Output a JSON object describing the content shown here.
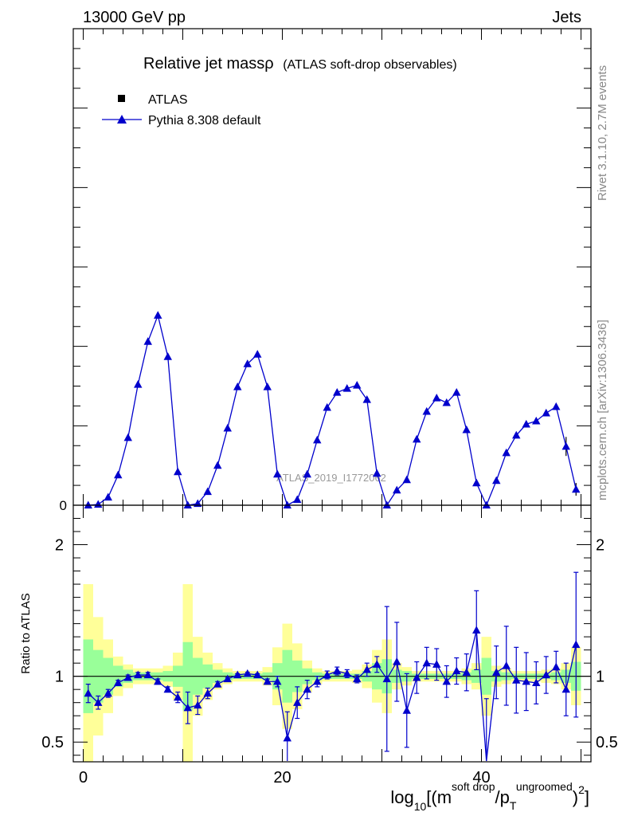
{
  "header": {
    "energy_label": "13000 GeV pp",
    "process_label": "Jets"
  },
  "side_labels": {
    "rivet": "Rivet 3.1.10,  2.7M events",
    "mcplots": "mcplots.cern.ch [arXiv:1306.3436]"
  },
  "watermark": "ATLAS_2019_I1772062",
  "colors": {
    "mc": "#0000cc",
    "band_inner": "#99ff99",
    "band_outer": "#ffff99",
    "axis": "#000000",
    "side_text": "#888888"
  },
  "chart_data": [
    {
      "type": "line",
      "panel": "main",
      "title": "Relative jet massρ",
      "subtitle": "(ATLAS soft-drop observables)",
      "legend_placement": "top-left",
      "legend": [
        {
          "label": "ATLAS",
          "marker": "square",
          "color": "#000000"
        },
        {
          "label": "Pythia 8.308 default",
          "marker": "triangle",
          "color": "#0000cc"
        }
      ],
      "xlim": [
        -1,
        51
      ],
      "ylim": [
        0,
        6
      ],
      "y_tick_labels": [
        {
          "value": 0,
          "label": "0"
        }
      ],
      "series": [
        {
          "name": "Pythia 8.308 default",
          "x": [
            0.5,
            1.5,
            2.5,
            3.5,
            4.5,
            5.5,
            6.5,
            7.5,
            8.5,
            9.5,
            10.5,
            11.5,
            12.5,
            13.5,
            14.5,
            15.5,
            16.5,
            17.5,
            18.5,
            19.5,
            20.5,
            21.5,
            22.5,
            23.5,
            24.5,
            25.5,
            26.5,
            27.5,
            28.5,
            29.5,
            30.5,
            31.5,
            32.5,
            33.5,
            34.5,
            35.5,
            36.5,
            37.5,
            38.5,
            39.5,
            40.5,
            41.5,
            42.5,
            43.5,
            44.5,
            45.5,
            46.5,
            47.5,
            48.5,
            49.5
          ],
          "y": [
            0.0,
            0.01,
            0.1,
            0.38,
            0.85,
            1.52,
            2.06,
            2.39,
            1.87,
            0.42,
            0.0,
            0.02,
            0.17,
            0.5,
            0.97,
            1.49,
            1.78,
            1.9,
            1.49,
            0.39,
            0.0,
            0.07,
            0.39,
            0.82,
            1.23,
            1.42,
            1.47,
            1.51,
            1.33,
            0.4,
            0.0,
            0.19,
            0.32,
            0.83,
            1.18,
            1.35,
            1.29,
            1.42,
            0.95,
            0.28,
            0.0,
            0.31,
            0.66,
            0.88,
            1.02,
            1.06,
            1.16,
            1.24,
            0.74,
            0.2
          ],
          "yerr": [
            0.0,
            0.0,
            0.0,
            0.0,
            0.0,
            0.0,
            0.0,
            0.0,
            0.0,
            0.0,
            0.0,
            0.0,
            0.0,
            0.0,
            0.0,
            0.0,
            0.0,
            0.0,
            0.0,
            0.0,
            0.0,
            0.0,
            0.0,
            0.0,
            0.0,
            0.0,
            0.0,
            0.0,
            0.0,
            0.0,
            0.0,
            0.0,
            0.0,
            0.0,
            0.0,
            0.0,
            0.0,
            0.0,
            0.0,
            0.0,
            0.0,
            0.0,
            0.0,
            0.0,
            0.0,
            0.0,
            0.0,
            0.0,
            0.12,
            0.08
          ]
        }
      ]
    },
    {
      "type": "line",
      "panel": "ratio",
      "ylabel": "Ratio to ATLAS",
      "xlabel": "log10[(m^{soft drop}/p_T^{ungroomed})^2]",
      "xlim": [
        -1,
        51
      ],
      "ylim": [
        0.35,
        2.3
      ],
      "x_ticks": [
        0,
        20,
        40
      ],
      "y_ticks": [
        0.5,
        1,
        2
      ],
      "reference_line": 1,
      "bands": {
        "x_edges": [
          0,
          1,
          2,
          3,
          4,
          5,
          6,
          7,
          8,
          9,
          10,
          11,
          12,
          13,
          14,
          15,
          16,
          17,
          18,
          19,
          20,
          21,
          22,
          23,
          24,
          25,
          26,
          27,
          28,
          29,
          30,
          31,
          32,
          33,
          34,
          35,
          36,
          37,
          38,
          39,
          40,
          41,
          42,
          43,
          44,
          45,
          46,
          47,
          48,
          49,
          50
        ],
        "inner_half_width": [
          0.28,
          0.2,
          0.14,
          0.08,
          0.05,
          0.03,
          0.03,
          0.03,
          0.04,
          0.08,
          0.26,
          0.14,
          0.09,
          0.05,
          0.03,
          0.02,
          0.02,
          0.02,
          0.03,
          0.1,
          0.2,
          0.12,
          0.06,
          0.03,
          0.02,
          0.02,
          0.02,
          0.02,
          0.04,
          0.1,
          0.13,
          0.05,
          0.04,
          0.02,
          0.02,
          0.02,
          0.02,
          0.02,
          0.03,
          0.05,
          0.14,
          0.04,
          0.03,
          0.02,
          0.02,
          0.02,
          0.02,
          0.03,
          0.05,
          0.11
        ],
        "outer_half_width": [
          0.7,
          0.45,
          0.28,
          0.15,
          0.09,
          0.06,
          0.06,
          0.06,
          0.08,
          0.18,
          0.7,
          0.3,
          0.18,
          0.1,
          0.06,
          0.04,
          0.04,
          0.04,
          0.07,
          0.22,
          0.4,
          0.25,
          0.12,
          0.06,
          0.04,
          0.04,
          0.04,
          0.05,
          0.09,
          0.2,
          0.28,
          0.1,
          0.07,
          0.04,
          0.04,
          0.04,
          0.04,
          0.04,
          0.06,
          0.1,
          0.3,
          0.08,
          0.06,
          0.04,
          0.04,
          0.04,
          0.05,
          0.06,
          0.1,
          0.22
        ]
      },
      "series": [
        {
          "name": "Pythia 8.308 default",
          "x": [
            0.5,
            1.5,
            2.5,
            3.5,
            4.5,
            5.5,
            6.5,
            7.5,
            8.5,
            9.5,
            10.5,
            11.5,
            12.5,
            13.5,
            14.5,
            15.5,
            16.5,
            17.5,
            18.5,
            19.5,
            20.5,
            21.5,
            22.5,
            23.5,
            24.5,
            25.5,
            26.5,
            27.5,
            28.5,
            29.5,
            30.5,
            31.5,
            32.5,
            33.5,
            34.5,
            35.5,
            36.5,
            37.5,
            38.5,
            39.5,
            40.5,
            41.5,
            42.5,
            43.5,
            44.5,
            45.5,
            46.5,
            47.5,
            48.5,
            49.5
          ],
          "y": [
            0.87,
            0.8,
            0.87,
            0.95,
            0.99,
            1.01,
            1.01,
            0.96,
            0.9,
            0.84,
            0.76,
            0.78,
            0.87,
            0.94,
            0.98,
            1.01,
            1.02,
            1.01,
            0.96,
            0.96,
            0.53,
            0.8,
            0.9,
            0.96,
            1.01,
            1.04,
            1.02,
            0.98,
            1.05,
            1.09,
            0.98,
            1.11,
            0.74,
            0.99,
            1.1,
            1.09,
            0.96,
            1.04,
            1.03,
            1.35,
            0.33,
            1.03,
            1.08,
            0.97,
            0.96,
            0.95,
            1.01,
            1.07,
            0.9,
            1.24
          ],
          "yerr": [
            0.07,
            0.05,
            0.03,
            0.02,
            0.02,
            0.02,
            0.02,
            0.02,
            0.02,
            0.04,
            0.12,
            0.07,
            0.04,
            0.02,
            0.01,
            0.01,
            0.01,
            0.01,
            0.02,
            0.04,
            0.2,
            0.12,
            0.07,
            0.04,
            0.03,
            0.03,
            0.03,
            0.03,
            0.05,
            0.06,
            0.55,
            0.3,
            0.28,
            0.12,
            0.12,
            0.12,
            0.12,
            0.1,
            0.14,
            0.3,
            0.5,
            0.2,
            0.3,
            0.25,
            0.22,
            0.16,
            0.14,
            0.12,
            0.2,
            0.55
          ]
        }
      ]
    }
  ]
}
